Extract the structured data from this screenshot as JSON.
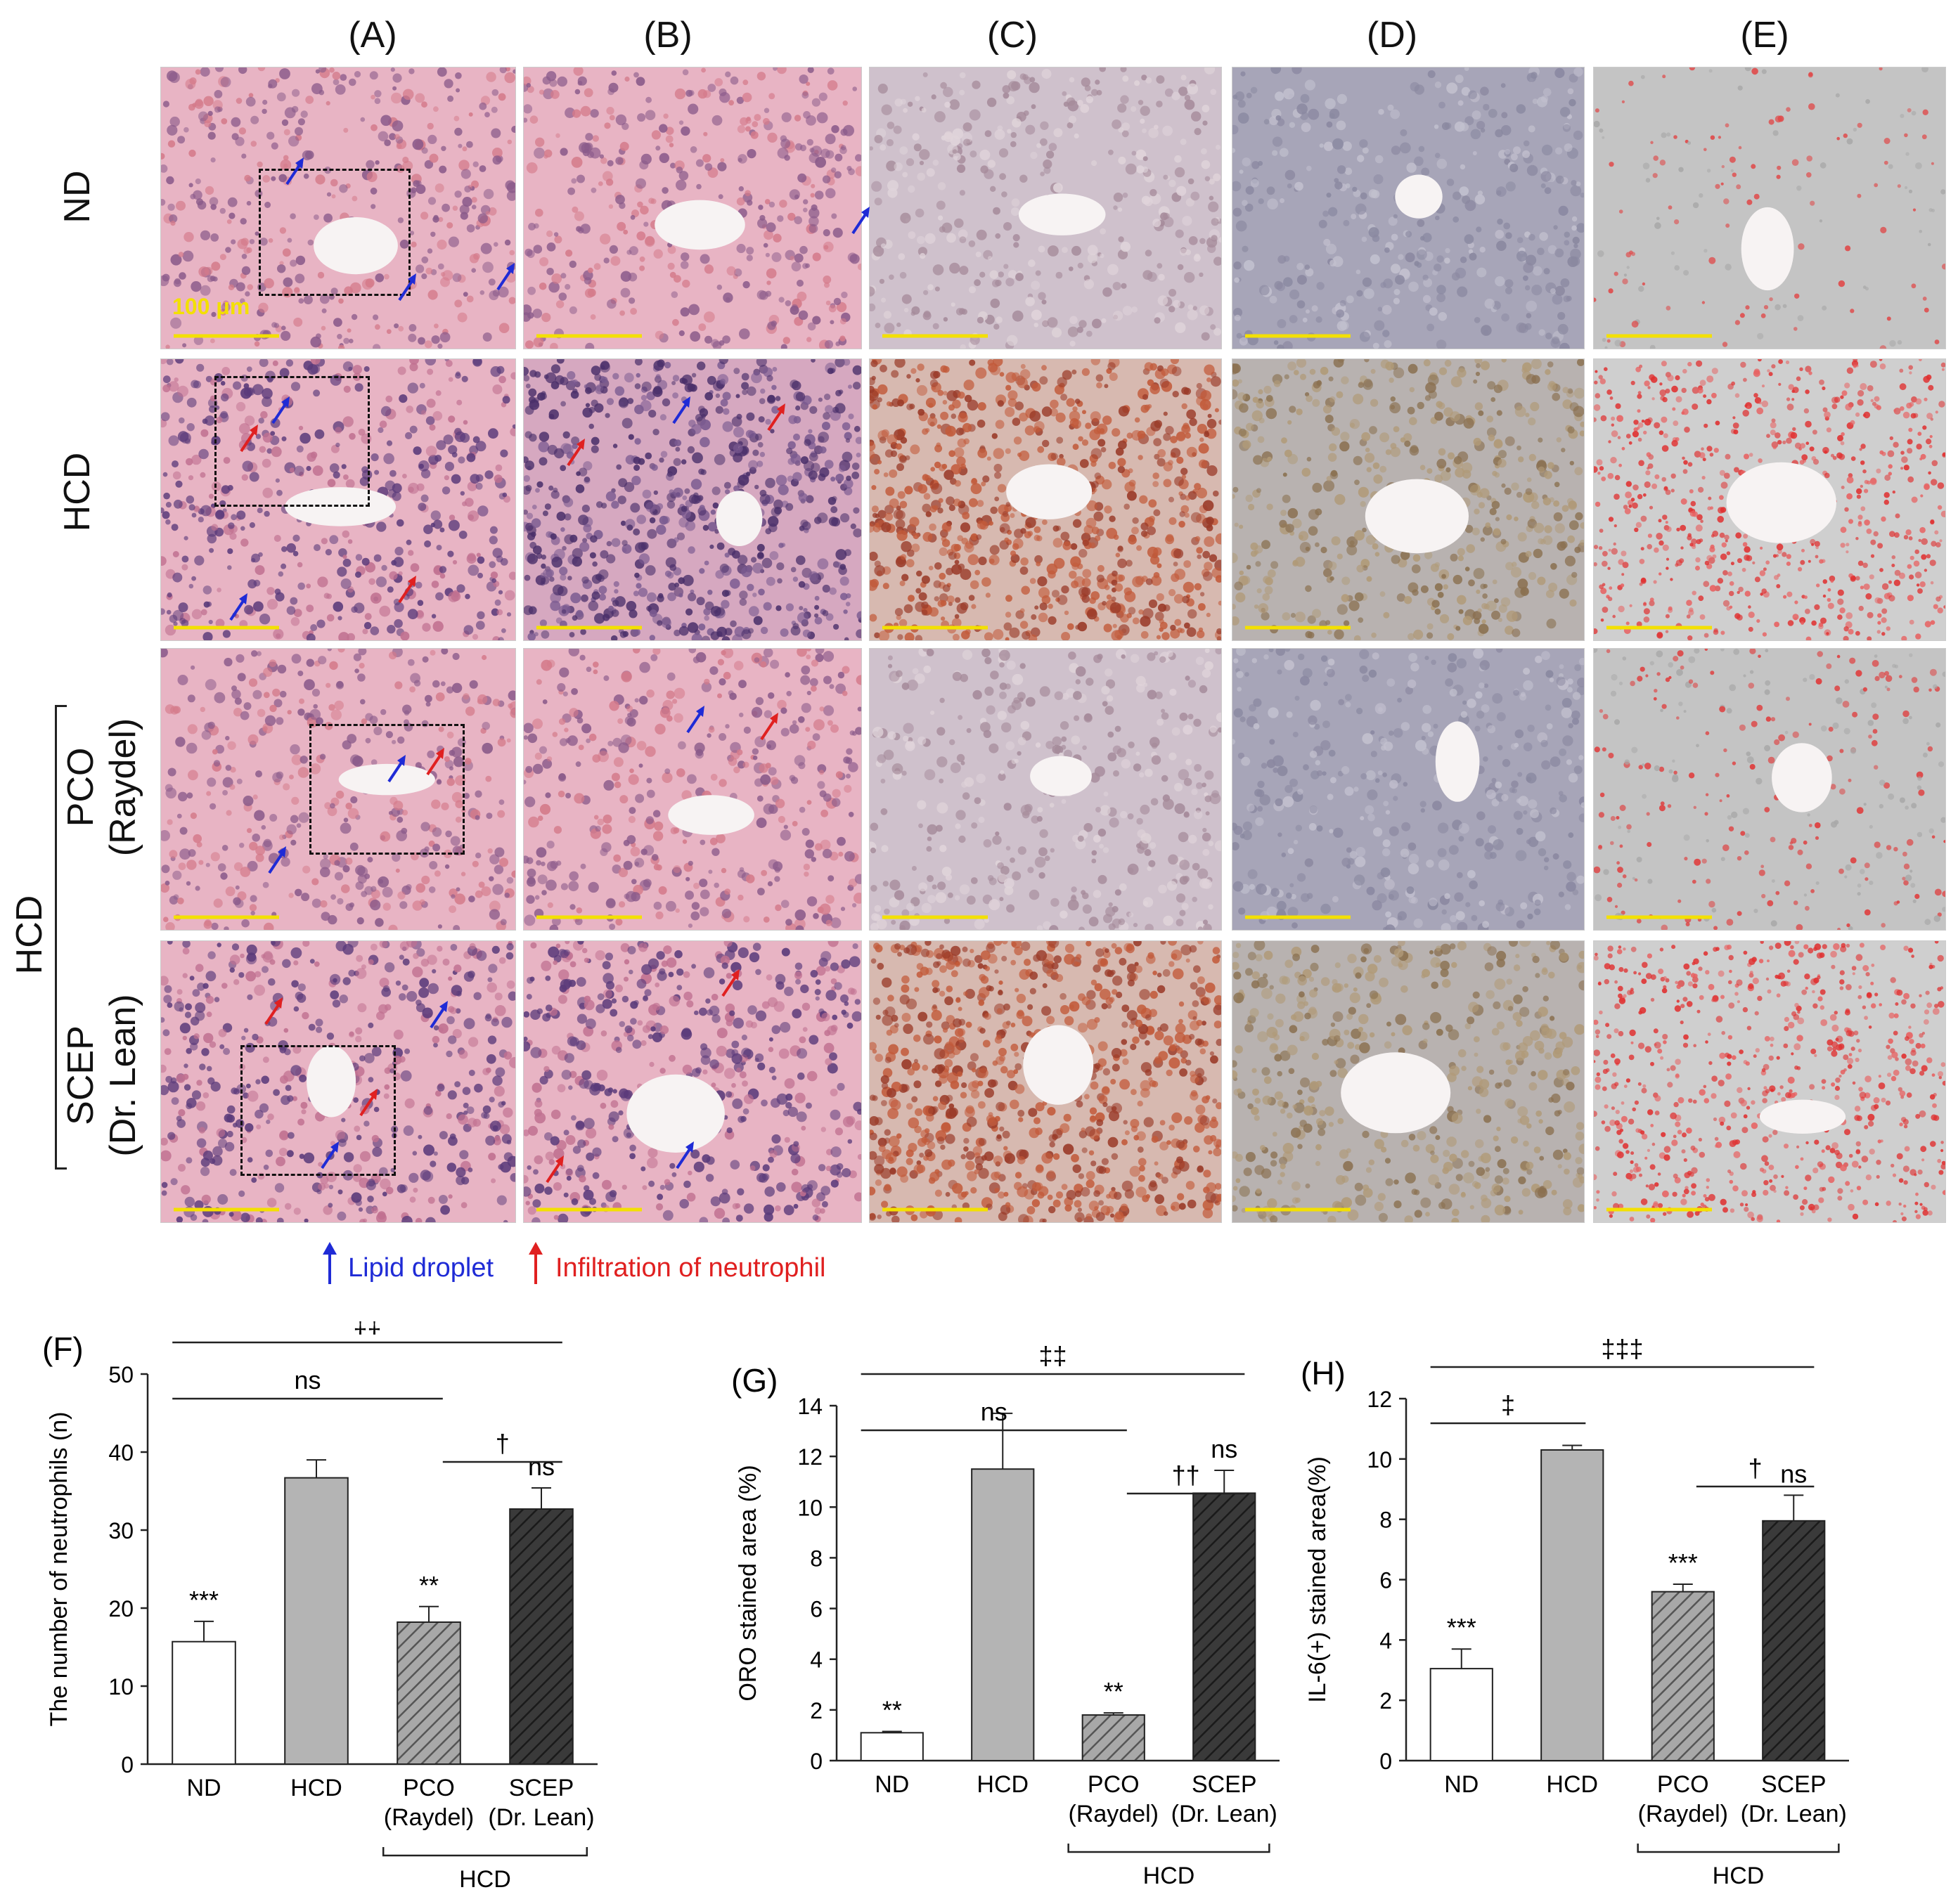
{
  "figure": {
    "column_labels": [
      "(A)",
      "(B)",
      "(C)",
      "(D)",
      "(E)"
    ],
    "row_labels": [
      "ND",
      "HCD",
      "PCO\n(Raydel)",
      "SCEP\n(Dr. Lean)"
    ],
    "group_label": "HCD",
    "scale_bar_label": "100 μm",
    "legend": {
      "lipid": "Lipid droplet",
      "neutrophil": "Infiltration of neutrophil",
      "lipid_color": "#1f2bd6",
      "neutrophil_color": "#e02020"
    },
    "stain_colors": {
      "he": "#e8b4c4",
      "he_dense": "#8a6fa0",
      "oro_light": "#cfc1cc",
      "oro_heavy": "#c25a3a",
      "ihc": "#a7a5b8",
      "ihc_brown": "#b09a78",
      "seg_bg": "#c4c4c4",
      "seg_red": "#e03030"
    }
  },
  "chart_data": [
    {
      "panel": "(F)",
      "type": "bar",
      "ylabel": "The number of neutrophils (n)",
      "ylim": [
        0,
        50
      ],
      "yticks": [
        "0",
        "10",
        "20",
        "30",
        "40",
        "50"
      ],
      "categories": [
        "ND",
        "HCD",
        "PCO\n(Raydel)",
        "SCEP\n(Dr. Lean)"
      ],
      "values": [
        15.7,
        36.7,
        18.2,
        32.7
      ],
      "errors": [
        2.6,
        2.3,
        2.0,
        2.7
      ],
      "bar_sig": [
        "***",
        "",
        "**",
        "ns"
      ],
      "brackets": [
        {
          "from": 0,
          "to": 3,
          "label": "‡‡"
        },
        {
          "from": 0,
          "to": 2,
          "label": "ns"
        },
        {
          "from": 2,
          "to": 3,
          "label": "†"
        }
      ],
      "group_label": "HCD"
    },
    {
      "panel": "(G)",
      "type": "bar",
      "ylabel": "ORO stained area (%)",
      "ylim": [
        0,
        14
      ],
      "yticks": [
        "0",
        "2",
        "4",
        "6",
        "8",
        "10",
        "12",
        "14"
      ],
      "categories": [
        "ND",
        "HCD",
        "PCO\n(Raydel)",
        "SCEP\n(Dr. Lean)"
      ],
      "values": [
        1.1,
        11.5,
        1.8,
        10.55
      ],
      "errors": [
        0.05,
        2.2,
        0.08,
        0.9
      ],
      "bar_sig": [
        "**",
        "",
        "**",
        "ns"
      ],
      "brackets": [
        {
          "from": 0,
          "to": 3,
          "label": "‡‡"
        },
        {
          "from": 0,
          "to": 2,
          "label": "ns"
        },
        {
          "from": 2,
          "to": 3,
          "label": "††"
        }
      ],
      "group_label": "HCD"
    },
    {
      "panel": "(H)",
      "type": "bar",
      "ylabel": "IL-6(+) stained area(%)",
      "ylim": [
        0,
        12
      ],
      "yticks": [
        "0",
        "2",
        "4",
        "6",
        "8",
        "10",
        "12"
      ],
      "categories": [
        "ND",
        "HCD",
        "PCO\n(Raydel)",
        "SCEP\n(Dr. Lean)"
      ],
      "values": [
        3.05,
        10.3,
        5.6,
        7.95
      ],
      "errors": [
        0.65,
        0.15,
        0.25,
        0.85
      ],
      "bar_sig": [
        "***",
        "",
        "***",
        "ns"
      ],
      "brackets": [
        {
          "from": 0,
          "to": 3,
          "label": "‡‡‡"
        },
        {
          "from": 0,
          "to": 1,
          "label": "‡"
        },
        {
          "from": 2,
          "to": 3,
          "label": "†"
        }
      ],
      "group_label": "HCD"
    }
  ]
}
